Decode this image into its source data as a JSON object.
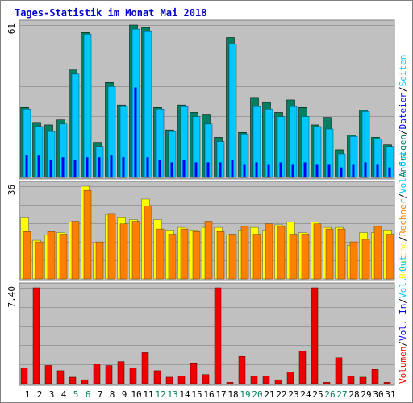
{
  "colors": {
    "page": "#ffffff",
    "frame": "#808080",
    "panel": "#c0c0c0",
    "grid": "#999999",
    "title": "#0000cc",
    "axis_label": "#000000",
    "day_weekday": "#000000",
    "day_weekend": "#008060",
    "anfragen": "#008060",
    "dateien": "#00c8ff",
    "seiten": "#0000ee",
    "besuche": "#ffff00",
    "rechner": "#ff8000",
    "volumen": "#ee0000"
  },
  "chart_data": [
    {
      "type": "bar",
      "title": "Tages-Statistik im Monat Mai 2018",
      "ymax_label": "61",
      "ylim": [
        0,
        61
      ],
      "grid": true,
      "legend": "right vertical",
      "right_labels": [
        {
          "text": "Anfragen",
          "color_key": "anfragen"
        },
        {
          "text": "/",
          "color_key": "axis_label"
        },
        {
          "text": "Dateien",
          "color_key": "seiten"
        },
        {
          "text": "/",
          "color_key": "axis_label"
        },
        {
          "text": "Seiten",
          "color_key": "dateien"
        }
      ],
      "categories": [
        "1",
        "2",
        "3",
        "4",
        "5",
        "6",
        "7",
        "8",
        "9",
        "10",
        "11",
        "12",
        "13",
        "14",
        "15",
        "16",
        "17",
        "18",
        "19",
        "20",
        "21",
        "22",
        "23",
        "24",
        "25",
        "26",
        "27",
        "28",
        "29",
        "30",
        "31"
      ],
      "weekend_days": [
        "5",
        "6",
        "12",
        "13",
        "19",
        "20",
        "26",
        "27"
      ],
      "series": [
        {
          "name": "Anfragen",
          "values": [
            28,
            22,
            21,
            23,
            43,
            58,
            14,
            38,
            29,
            61,
            60,
            28,
            19,
            29,
            26,
            25,
            16,
            56,
            18,
            32,
            30,
            26,
            31,
            28,
            21,
            24,
            11,
            17,
            27,
            16,
            13
          ]
        },
        {
          "name": "Dateien",
          "values": [
            28,
            21,
            19,
            22,
            42,
            58,
            13,
            37,
            29,
            60,
            59,
            28,
            19,
            29,
            25,
            22,
            15,
            54,
            18,
            29,
            28,
            25,
            29,
            25,
            21,
            20,
            10,
            17,
            27,
            16,
            13
          ]
        },
        {
          "name": "Seiten",
          "values": [
            9,
            9,
            7,
            8,
            7,
            8,
            8,
            9,
            8,
            36,
            8,
            7,
            6,
            7,
            6,
            6,
            6,
            7,
            5,
            6,
            5,
            6,
            5,
            6,
            5,
            5,
            4,
            5,
            6,
            5,
            4
          ]
        }
      ]
    },
    {
      "type": "bar",
      "ymax_label": "36",
      "ylim": [
        0,
        36
      ],
      "grid": true,
      "right_labels": [
        {
          "text": "Besuche",
          "color_key": "besuche"
        },
        {
          "text": "/",
          "color_key": "axis_label"
        },
        {
          "text": "Rechner",
          "color_key": "rechner"
        },
        {
          "text": "/",
          "color_key": "axis_label"
        },
        {
          "text": "Vol. Out",
          "color_key": "dateien"
        }
      ],
      "categories": [
        "1",
        "2",
        "3",
        "4",
        "5",
        "6",
        "7",
        "8",
        "9",
        "10",
        "11",
        "12",
        "13",
        "14",
        "15",
        "16",
        "17",
        "18",
        "19",
        "20",
        "21",
        "22",
        "23",
        "24",
        "25",
        "26",
        "27",
        "28",
        "29",
        "30",
        "31"
      ],
      "series": [
        {
          "name": "Besuche",
          "values": [
            24,
            15,
            17,
            18,
            22,
            36,
            14,
            25,
            24,
            23,
            31,
            23,
            19,
            20,
            19,
            20,
            20,
            17,
            19,
            20,
            19,
            21,
            22,
            18,
            22,
            20,
            20,
            13,
            18,
            18,
            19
          ]
        },
        {
          "name": "Rechner",
          "values": [
            19,
            15,
            19,
            18,
            23,
            35,
            15,
            26,
            22,
            23,
            29,
            20,
            18,
            20,
            19,
            23,
            19,
            18,
            21,
            18,
            22,
            21,
            18,
            18,
            22,
            20,
            20,
            15,
            16,
            21,
            18
          ]
        }
      ]
    },
    {
      "type": "bar",
      "ymax_label": "7.40",
      "ylim": [
        0,
        7.4
      ],
      "grid": true,
      "right_labels": [
        {
          "text": "Volumen",
          "color_key": "volumen"
        },
        {
          "text": "/",
          "color_key": "axis_label"
        },
        {
          "text": "Vol. In",
          "color_key": "seiten"
        },
        {
          "text": "/",
          "color_key": "axis_label"
        },
        {
          "text": "Vol. Out",
          "color_key": "dateien"
        }
      ],
      "categories": [
        "1",
        "2",
        "3",
        "4",
        "5",
        "6",
        "7",
        "8",
        "9",
        "10",
        "11",
        "12",
        "13",
        "14",
        "15",
        "16",
        "17",
        "18",
        "19",
        "20",
        "21",
        "22",
        "23",
        "24",
        "25",
        "26",
        "27",
        "28",
        "29",
        "30",
        "31"
      ],
      "series": [
        {
          "name": "Volumen",
          "values": [
            1.2,
            7.4,
            1.4,
            1.0,
            0.5,
            0.3,
            1.5,
            1.4,
            1.7,
            1.2,
            2.4,
            1.0,
            0.5,
            0.6,
            1.6,
            0.7,
            7.4,
            0.1,
            2.1,
            0.6,
            0.6,
            0.3,
            0.9,
            2.5,
            7.4,
            0.1,
            2.0,
            0.6,
            0.5,
            1.1,
            0.1
          ]
        }
      ]
    }
  ]
}
